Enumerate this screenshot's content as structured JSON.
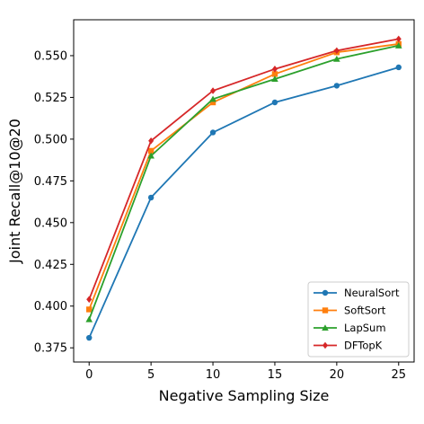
{
  "chart_data": {
    "type": "line",
    "xlabel": "Negative Sampling Size",
    "ylabel": "Joint Recall@10@20",
    "x": [
      0,
      5,
      10,
      15,
      20,
      25
    ],
    "xticks": [
      "0",
      "5",
      "10",
      "15",
      "20",
      "25"
    ],
    "yticks": [
      "0.375",
      "0.400",
      "0.425",
      "0.450",
      "0.475",
      "0.500",
      "0.525",
      "0.550"
    ],
    "xlim": [
      -1.25,
      26.25
    ],
    "ylim": [
      0.3665,
      0.5715
    ],
    "grid": false,
    "legend_position": "lower-right",
    "series": [
      {
        "name": "NeuralSort",
        "color": "#1f77b4",
        "marker": "circle",
        "values": [
          0.381,
          0.465,
          0.504,
          0.522,
          0.532,
          0.543
        ]
      },
      {
        "name": "SoftSort",
        "color": "#ff7f0e",
        "marker": "square",
        "values": [
          0.398,
          0.493,
          0.522,
          0.539,
          0.552,
          0.557
        ]
      },
      {
        "name": "LapSum",
        "color": "#2ca02c",
        "marker": "triangle",
        "values": [
          0.392,
          0.49,
          0.524,
          0.536,
          0.548,
          0.556
        ]
      },
      {
        "name": "DFTopK",
        "color": "#d62728",
        "marker": "diamond",
        "values": [
          0.404,
          0.499,
          0.529,
          0.542,
          0.553,
          0.56
        ]
      }
    ]
  }
}
